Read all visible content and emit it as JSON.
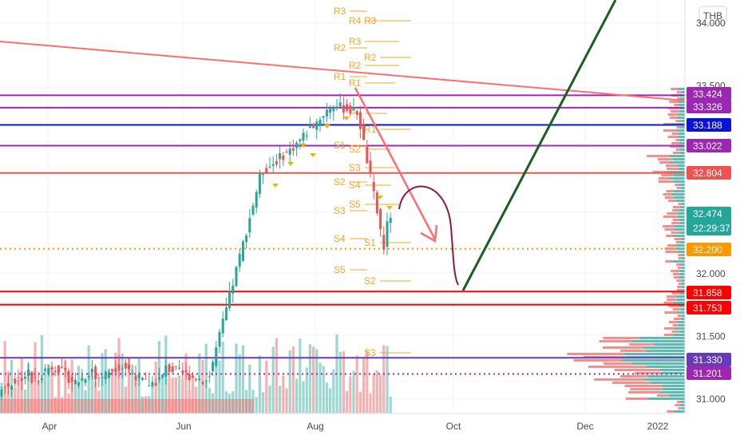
{
  "chart_data": {
    "type": "candlestick",
    "currency": "THB",
    "y_axis": {
      "min": 30.8,
      "max": 34.2,
      "ticks": [
        31.0,
        31.5,
        32.0,
        32.5,
        33.0,
        33.5,
        34.0
      ]
    },
    "x_axis": {
      "labels": [
        "Apr",
        "Jun",
        "Aug",
        "Oct",
        "Dec",
        "2022"
      ]
    },
    "price_badges": [
      {
        "value": "33.424",
        "color": "#9c27b0"
      },
      {
        "value": "33.326",
        "color": "#9c27b0"
      },
      {
        "value": "33.188",
        "color": "#0a14d8"
      },
      {
        "value": "33.022",
        "color": "#9c27b0"
      },
      {
        "value": "32.804",
        "color": "#ef5350"
      },
      {
        "value": "32.474",
        "color": "#26a69a"
      },
      {
        "value": "32.200",
        "color": "#ff9800"
      },
      {
        "value": "31.858",
        "color": "#ff0000"
      },
      {
        "value": "31.753",
        "color": "#ff0000"
      },
      {
        "value": "31.330",
        "color": "#673ab7"
      },
      {
        "value": "31.201",
        "color": "#9c27b0"
      }
    ],
    "countdown": "22:29:37",
    "horizontal_levels": [
      {
        "price": 33.424,
        "color": "#9c27b0"
      },
      {
        "price": 33.326,
        "color": "#9c27b0"
      },
      {
        "price": 33.188,
        "color": "#0a14d8"
      },
      {
        "price": 33.022,
        "color": "#9c27b0"
      },
      {
        "price": 32.804,
        "color": "#ef5350"
      },
      {
        "price": 32.2,
        "color": "#ff9800",
        "style": "dotted"
      },
      {
        "price": 31.858,
        "color": "#ff0000"
      },
      {
        "price": 31.753,
        "color": "#ff0000"
      },
      {
        "price": 31.33,
        "color": "#673ab7"
      },
      {
        "price": 31.201,
        "color": "#9c27b0",
        "style": "dotted"
      }
    ],
    "pivot_labels": [
      "R3",
      "R4",
      "R3",
      "R2",
      "R3",
      "R2",
      "R2",
      "R1",
      "R1",
      "R1",
      "P",
      "S1",
      "S2",
      "S3",
      "S2",
      "S4",
      "S3",
      "S5",
      "S4",
      "S1",
      "S5",
      "S2",
      "S3"
    ],
    "colors": {
      "up": "#26a69a",
      "down": "#ef5350",
      "pivot": "#f5a623",
      "trend": "#ff6e6e",
      "green_line": "#1b5e20",
      "curve": "#8b1a4a"
    }
  }
}
